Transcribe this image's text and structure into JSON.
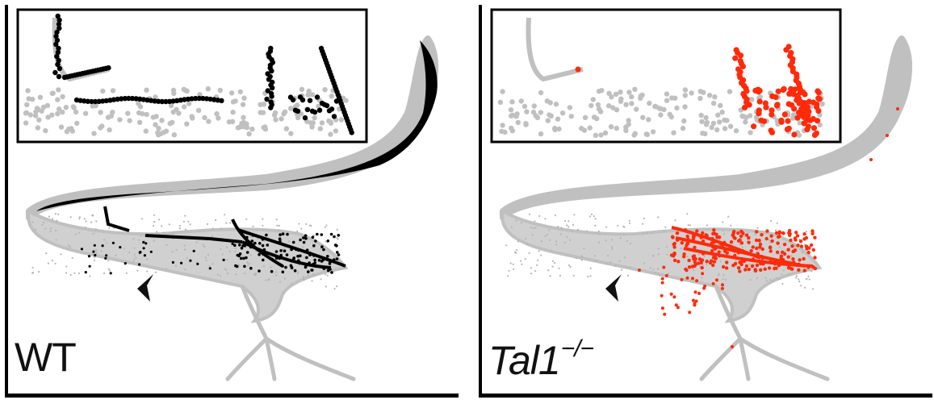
{
  "panels": [
    {
      "id": "wt",
      "label": "WT",
      "superscript": "",
      "italic": false,
      "highlight_color": "#000000"
    },
    {
      "id": "ko",
      "label": "Tal1",
      "superscript": "−/−",
      "italic": true,
      "highlight_color": "#ff2a0a"
    }
  ],
  "colors": {
    "background_cells": "#c0c0c0",
    "arrow": "#111111",
    "frame": "#000000"
  },
  "icons": [
    "arrowhead-icon"
  ]
}
